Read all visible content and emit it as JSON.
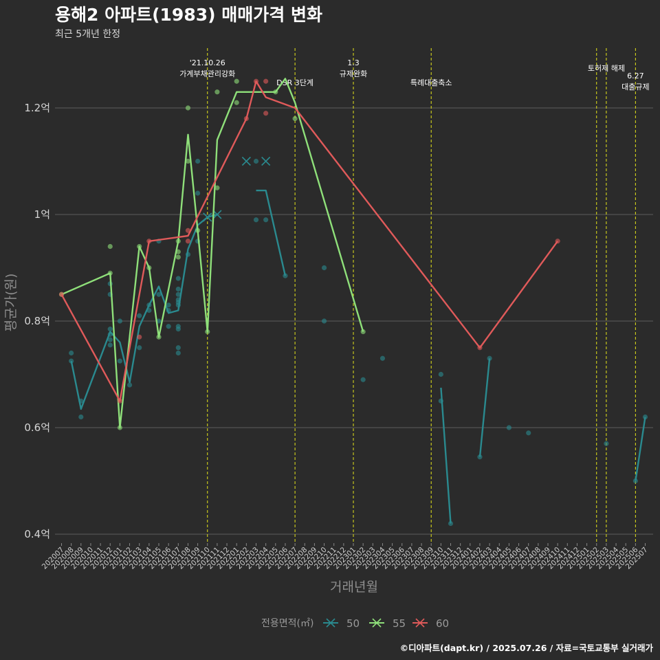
{
  "chart_data": {
    "type": "line",
    "title": "용해2 아파트(1983) 매매가격 변화",
    "subtitle": "최근 5개년 한정",
    "xlabel": "거래년월",
    "ylabel": "평균가(원)",
    "ylim": [
      0.38,
      1.32
    ],
    "yticks": [
      {
        "value": 0.4,
        "label": "0.4억"
      },
      {
        "value": 0.6,
        "label": "0.6억"
      },
      {
        "value": 0.8,
        "label": "0.8억"
      },
      {
        "value": 1.0,
        "label": "1억"
      },
      {
        "value": 1.2,
        "label": "1.2억"
      }
    ],
    "x_categories": [
      "202007",
      "202008",
      "202009",
      "202010",
      "202011",
      "202012",
      "202101",
      "202102",
      "202103",
      "202104",
      "202105",
      "202106",
      "202107",
      "202108",
      "202109",
      "202110",
      "202111",
      "202112",
      "202201",
      "202202",
      "202203",
      "202204",
      "202205",
      "202206",
      "202207",
      "202208",
      "202209",
      "202210",
      "202211",
      "202212",
      "202301",
      "202302",
      "202303",
      "202304",
      "202305",
      "202306",
      "202307",
      "202308",
      "202309",
      "202310",
      "202311",
      "202312",
      "202401",
      "202402",
      "202403",
      "202404",
      "202405",
      "202406",
      "202407",
      "202408",
      "202409",
      "202410",
      "202411",
      "202412",
      "202501",
      "202502",
      "202503",
      "202504",
      "202505",
      "202506",
      "202507"
    ],
    "grid": true,
    "legend": {
      "title": "전용면적(㎡)",
      "position": "bottom"
    },
    "series": [
      {
        "name": "50",
        "color": "#2a8a8f",
        "line": [
          {
            "x": "202008",
            "y": 0.725
          },
          {
            "x": "202009",
            "y": 0.635
          },
          {
            "x": "202012",
            "y": 0.78
          },
          {
            "x": "202101",
            "y": 0.76
          },
          {
            "x": "202102",
            "y": 0.685
          },
          {
            "x": "202103",
            "y": 0.79
          },
          {
            "x": "202104",
            "y": 0.83
          },
          {
            "x": "202105",
            "y": 0.865
          },
          {
            "x": "202106",
            "y": 0.815
          },
          {
            "x": "202107",
            "y": 0.82
          },
          {
            "x": "202108",
            "y": 0.935
          },
          {
            "x": "202109",
            "y": 0.98
          },
          {
            "x": "202110",
            "y": 0.995
          },
          {
            "x": "202111",
            "y": 1.0
          },
          null,
          {
            "x": "202203",
            "y": 1.045
          },
          {
            "x": "202204",
            "y": 1.045
          },
          {
            "x": "202206",
            "y": 0.885
          },
          null,
          {
            "x": "202310",
            "y": 0.675
          },
          {
            "x": "202311",
            "y": 0.42
          },
          null,
          {
            "x": "202402",
            "y": 0.545
          },
          {
            "x": "202403",
            "y": 0.73
          },
          null,
          {
            "x": "202506",
            "y": 0.5
          },
          {
            "x": "202507",
            "y": 0.62
          }
        ],
        "points": [
          {
            "x": "202008",
            "y": 0.74
          },
          {
            "x": "202008",
            "y": 0.725
          },
          {
            "x": "202009",
            "y": 0.65
          },
          {
            "x": "202009",
            "y": 0.62
          },
          {
            "x": "202012",
            "y": 0.87
          },
          {
            "x": "202012",
            "y": 0.85
          },
          {
            "x": "202012",
            "y": 0.785
          },
          {
            "x": "202012",
            "y": 0.775
          },
          {
            "x": "202012",
            "y": 0.765
          },
          {
            "x": "202012",
            "y": 0.755
          },
          {
            "x": "202101",
            "y": 0.8
          },
          {
            "x": "202101",
            "y": 0.725
          },
          {
            "x": "202102",
            "y": 0.68
          },
          {
            "x": "202103",
            "y": 0.81
          },
          {
            "x": "202103",
            "y": 0.75
          },
          {
            "x": "202104",
            "y": 0.83
          },
          {
            "x": "202104",
            "y": 0.82
          },
          {
            "x": "202105",
            "y": 0.95
          },
          {
            "x": "202105",
            "y": 0.85
          },
          {
            "x": "202105",
            "y": 0.8
          },
          {
            "x": "202106",
            "y": 0.83
          },
          {
            "x": "202106",
            "y": 0.82
          },
          {
            "x": "202106",
            "y": 0.79
          },
          {
            "x": "202107",
            "y": 0.88
          },
          {
            "x": "202107",
            "y": 0.86
          },
          {
            "x": "202107",
            "y": 0.85
          },
          {
            "x": "202107",
            "y": 0.84
          },
          {
            "x": "202107",
            "y": 0.835
          },
          {
            "x": "202107",
            "y": 0.83
          },
          {
            "x": "202107",
            "y": 0.79
          },
          {
            "x": "202107",
            "y": 0.785
          },
          {
            "x": "202107",
            "y": 0.75
          },
          {
            "x": "202107",
            "y": 0.74
          },
          {
            "x": "202108",
            "y": 0.925
          },
          {
            "x": "202109",
            "y": 1.1
          },
          {
            "x": "202109",
            "y": 1.04
          },
          {
            "x": "202109",
            "y": 0.95
          },
          {
            "x": "202203",
            "y": 1.1
          },
          {
            "x": "202203",
            "y": 0.99
          },
          {
            "x": "202204",
            "y": 0.99
          },
          {
            "x": "202206",
            "y": 0.885
          },
          {
            "x": "202210",
            "y": 0.9
          },
          {
            "x": "202210",
            "y": 0.8
          },
          {
            "x": "202302",
            "y": 0.69
          },
          {
            "x": "202304",
            "y": 0.73
          },
          {
            "x": "202310",
            "y": 0.7
          },
          {
            "x": "202310",
            "y": 0.65
          },
          {
            "x": "202311",
            "y": 0.42
          },
          {
            "x": "202402",
            "y": 0.545
          },
          {
            "x": "202403",
            "y": 0.73
          },
          {
            "x": "202405",
            "y": 0.6
          },
          {
            "x": "202407",
            "y": 0.59
          },
          {
            "x": "202503",
            "y": 0.57
          },
          {
            "x": "202506",
            "y": 0.5
          },
          {
            "x": "202507",
            "y": 0.62
          }
        ],
        "crosses": [
          {
            "x": "202110",
            "y": 0.995
          },
          {
            "x": "202111",
            "y": 1.0
          },
          {
            "x": "202202",
            "y": 1.1
          },
          {
            "x": "202204",
            "y": 1.1
          }
        ]
      },
      {
        "name": "55",
        "color": "#8fe07a",
        "line": [
          {
            "x": "202007",
            "y": 0.85
          },
          {
            "x": "202012",
            "y": 0.89
          },
          {
            "x": "202101",
            "y": 0.6
          },
          {
            "x": "202103",
            "y": 0.94
          },
          {
            "x": "202104",
            "y": 0.9
          },
          {
            "x": "202105",
            "y": 0.77
          },
          {
            "x": "202107",
            "y": 0.95
          },
          {
            "x": "202108",
            "y": 1.15
          },
          {
            "x": "202109",
            "y": 0.97
          },
          {
            "x": "202110",
            "y": 0.78
          },
          {
            "x": "202111",
            "y": 1.14
          },
          {
            "x": "202201",
            "y": 1.23
          },
          {
            "x": "202204",
            "y": 1.23
          },
          {
            "x": "202205",
            "y": 1.23
          },
          {
            "x": "202206",
            "y": 1.255
          },
          {
            "x": "202207",
            "y": 1.21
          },
          {
            "x": "202302",
            "y": 0.78
          }
        ],
        "points": [
          {
            "x": "202007",
            "y": 0.85
          },
          {
            "x": "202012",
            "y": 0.94
          },
          {
            "x": "202012",
            "y": 0.89
          },
          {
            "x": "202101",
            "y": 0.6
          },
          {
            "x": "202103",
            "y": 0.94
          },
          {
            "x": "202104",
            "y": 0.9
          },
          {
            "x": "202105",
            "y": 0.77
          },
          {
            "x": "202107",
            "y": 0.95
          },
          {
            "x": "202107",
            "y": 0.93
          },
          {
            "x": "202107",
            "y": 0.92
          },
          {
            "x": "202108",
            "y": 1.2
          },
          {
            "x": "202108",
            "y": 1.1
          },
          {
            "x": "202109",
            "y": 0.97
          },
          {
            "x": "202110",
            "y": 0.78
          },
          {
            "x": "202111",
            "y": 1.23
          },
          {
            "x": "202111",
            "y": 1.05
          },
          {
            "x": "202201",
            "y": 1.25
          },
          {
            "x": "202201",
            "y": 1.21
          },
          {
            "x": "202205",
            "y": 1.23
          },
          {
            "x": "202207",
            "y": 1.18
          },
          {
            "x": "202302",
            "y": 0.78
          }
        ],
        "crosses": []
      },
      {
        "name": "60",
        "color": "#e05a5a",
        "line": [
          {
            "x": "202007",
            "y": 0.85
          },
          {
            "x": "202101",
            "y": 0.65
          },
          {
            "x": "202104",
            "y": 0.95
          },
          {
            "x": "202108",
            "y": 0.96
          },
          {
            "x": "202202",
            "y": 1.18
          },
          {
            "x": "202203",
            "y": 1.25
          },
          {
            "x": "202204",
            "y": 1.22
          },
          {
            "x": "202207",
            "y": 1.2
          },
          {
            "x": "202402",
            "y": 0.75
          },
          {
            "x": "202410",
            "y": 0.95
          }
        ],
        "points": [
          {
            "x": "202007",
            "y": 0.85
          },
          {
            "x": "202101",
            "y": 0.65
          },
          {
            "x": "202103",
            "y": 0.77
          },
          {
            "x": "202104",
            "y": 0.95
          },
          {
            "x": "202108",
            "y": 0.97
          },
          {
            "x": "202108",
            "y": 0.95
          },
          {
            "x": "202202",
            "y": 1.18
          },
          {
            "x": "202203",
            "y": 1.25
          },
          {
            "x": "202204",
            "y": 1.25
          },
          {
            "x": "202204",
            "y": 1.19
          },
          {
            "x": "202402",
            "y": 0.75
          },
          {
            "x": "202410",
            "y": 0.95
          }
        ],
        "crosses": []
      }
    ],
    "events": [
      {
        "x": "202110",
        "lines": [
          "'21.10.26",
          "가계부채관리강화"
        ],
        "level": "high"
      },
      {
        "x": "202207",
        "lines": [
          "DSR 3단계"
        ],
        "level": "mid"
      },
      {
        "x": "202301",
        "lines": [
          "1.3",
          "규제완화"
        ],
        "level": "high"
      },
      {
        "x": "202309",
        "lines": [
          "특례대출축소"
        ],
        "level": "mid"
      },
      {
        "x": "202502",
        "lines": [],
        "level": "none"
      },
      {
        "x": "202503",
        "lines": [
          "토허제 해제"
        ],
        "level": "top"
      },
      {
        "x": "202506",
        "lines": [
          "6.27",
          "대출규제"
        ],
        "level": "low"
      }
    ]
  },
  "caption": "©디아파트(dapt.kr) / 2025.07.26 / 자료=국토교통부 실거래가",
  "colors": {
    "background": "#2b2b2b",
    "grid": "#5e5e5e",
    "event": "#e6e619"
  }
}
